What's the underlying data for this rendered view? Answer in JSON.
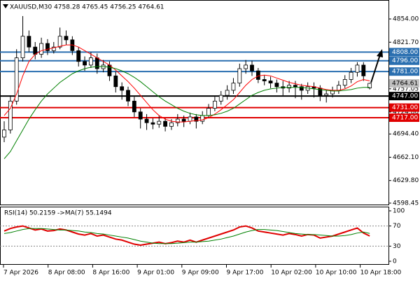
{
  "chart_data": [
    {
      "type": "candlestick",
      "title": "XAUUSD,M30  4758.28 4765.45 4756.25 4764.61",
      "ohlc": [
        [
          4690,
          4712,
          4683,
          4700
        ],
        [
          4700,
          4748,
          4695,
          4740
        ],
        [
          4740,
          4812,
          4735,
          4800
        ],
        [
          4800,
          4858,
          4795,
          4830
        ],
        [
          4830,
          4838,
          4808,
          4815
        ],
        [
          4815,
          4822,
          4798,
          4805
        ],
        [
          4805,
          4828,
          4800,
          4820
        ],
        [
          4820,
          4826,
          4804,
          4810
        ],
        [
          4810,
          4822,
          4806,
          4815
        ],
        [
          4815,
          4842,
          4812,
          4830
        ],
        [
          4830,
          4838,
          4818,
          4825
        ],
        [
          4825,
          4830,
          4804,
          4810
        ],
        [
          4810,
          4815,
          4788,
          4795
        ],
        [
          4795,
          4802,
          4782,
          4790
        ],
        [
          4790,
          4808,
          4786,
          4800
        ],
        [
          4800,
          4806,
          4778,
          4785
        ],
        [
          4785,
          4797,
          4780,
          4790
        ],
        [
          4790,
          4795,
          4768,
          4775
        ],
        [
          4775,
          4781,
          4752,
          4760
        ],
        [
          4760,
          4766,
          4742,
          4755
        ],
        [
          4755,
          4760,
          4733,
          4740
        ],
        [
          4740,
          4746,
          4718,
          4725
        ],
        [
          4725,
          4730,
          4702,
          4715
        ],
        [
          4715,
          4722,
          4700,
          4710
        ],
        [
          4710,
          4716,
          4701,
          4708
        ],
        [
          4708,
          4720,
          4703,
          4712
        ],
        [
          4712,
          4716,
          4698,
          4705
        ],
        [
          4705,
          4715,
          4700,
          4710
        ],
        [
          4710,
          4722,
          4705,
          4715
        ],
        [
          4715,
          4720,
          4704,
          4712
        ],
        [
          4712,
          4724,
          4708,
          4718
        ],
        [
          4718,
          4722,
          4702,
          4712
        ],
        [
          4712,
          4726,
          4708,
          4720
        ],
        [
          4720,
          4736,
          4716,
          4730
        ],
        [
          4730,
          4746,
          4726,
          4740
        ],
        [
          4740,
          4754,
          4735,
          4748
        ],
        [
          4748,
          4762,
          4742,
          4755
        ],
        [
          4755,
          4772,
          4750,
          4765
        ],
        [
          4765,
          4792,
          4760,
          4785
        ],
        [
          4785,
          4797,
          4778,
          4790
        ],
        [
          4790,
          4796,
          4775,
          4782
        ],
        [
          4782,
          4786,
          4765,
          4770
        ],
        [
          4770,
          4776,
          4762,
          4768
        ],
        [
          4768,
          4774,
          4758,
          4765
        ],
        [
          4765,
          4770,
          4752,
          4760
        ],
        [
          4760,
          4768,
          4748,
          4758
        ],
        [
          4758,
          4768,
          4752,
          4762
        ],
        [
          4762,
          4768,
          4744,
          4760
        ],
        [
          4760,
          4764,
          4742,
          4755
        ],
        [
          4755,
          4766,
          4750,
          4760
        ],
        [
          4760,
          4766,
          4745,
          4758
        ],
        [
          4758,
          4762,
          4740,
          4748
        ],
        [
          4748,
          4756,
          4738,
          4750
        ],
        [
          4750,
          4760,
          4745,
          4755
        ],
        [
          4755,
          4768,
          4750,
          4762
        ],
        [
          4762,
          4776,
          4758,
          4770
        ],
        [
          4770,
          4786,
          4765,
          4780
        ],
        [
          4780,
          4794,
          4774,
          4790
        ],
        [
          4790,
          4794,
          4768,
          4775
        ],
        [
          4758.28,
          4765.45,
          4756.25,
          4764.61
        ]
      ],
      "series": [
        {
          "color": "#ff0000",
          "values": [
            4720,
            4730,
            4750,
            4775,
            4795,
            4805,
            4810,
            4812,
            4814,
            4816,
            4818,
            4818,
            4815,
            4810,
            4805,
            4800,
            4795,
            4790,
            4783,
            4775,
            4767,
            4758,
            4748,
            4738,
            4728,
            4720,
            4715,
            4712,
            4711,
            4711,
            4712,
            4713,
            4714,
            4717,
            4722,
            4728,
            4735,
            4742,
            4752,
            4762,
            4770,
            4775,
            4776,
            4775,
            4772,
            4769,
            4766,
            4764,
            4762,
            4761,
            4760,
            4758,
            4756,
            4755,
            4755,
            4757,
            4761,
            4767,
            4770,
            4768
          ]
        },
        {
          "color": "#008000",
          "values": [
            4660,
            4670,
            4685,
            4700,
            4715,
            4728,
            4740,
            4750,
            4758,
            4766,
            4772,
            4778,
            4782,
            4785,
            4787,
            4788,
            4788,
            4787,
            4785,
            4782,
            4778,
            4773,
            4767,
            4760,
            4753,
            4746,
            4740,
            4735,
            4730,
            4726,
            4723,
            4721,
            4720,
            4720,
            4721,
            4723,
            4726,
            4730,
            4736,
            4742,
            4748,
            4752,
            4755,
            4757,
            4758,
            4759,
            4759,
            4759,
            4759,
            4758,
            4757,
            4756,
            4755,
            4754,
            4754,
            4755,
            4756,
            4758,
            4759,
            4759
          ]
        }
      ],
      "ylim": [
        4595.5,
        4876.4
      ],
      "yticks": [
        {
          "value": 4854,
          "label": "4854.00"
        },
        {
          "value": 4821.7,
          "label": "4821.70"
        },
        {
          "value": 4757.05,
          "label": "4757.05"
        },
        {
          "value": 4724.8,
          "label": "4724.80"
        },
        {
          "value": 4694.4,
          "label": "4694.40"
        },
        {
          "value": 4662.1,
          "label": "4662.10"
        },
        {
          "value": 4629.8,
          "label": "4629.80"
        },
        {
          "value": 4598.45,
          "label": "4598.45"
        }
      ],
      "hlines": [
        {
          "value": 4808,
          "label": "4808.00",
          "color": "#2a6fb0"
        },
        {
          "value": 4796,
          "label": "4796.00",
          "color": "#2a6fb0"
        },
        {
          "value": 4781,
          "label": "4781.00",
          "color": "#2a6fb0"
        },
        {
          "value": 4747,
          "label": "4747.00",
          "color": "#000000"
        },
        {
          "value": 4731,
          "label": "4731.00",
          "color": "#e00000"
        },
        {
          "value": 4717,
          "label": "4717.00",
          "color": "#e00000"
        }
      ],
      "last_price": 4764.61,
      "xlabels": [
        "7 Apr 2026",
        "8 Apr 08:00",
        "8 Apr 16:00",
        "9 Apr 01:00",
        "9 Apr 09:00",
        "9 Apr 17:00",
        "10 Apr 02:00",
        "10 Apr 10:00",
        "10 Apr 18:00"
      ]
    },
    {
      "type": "line",
      "title": "RSI(14) 50.2159 ->MA(7) 55.1494",
      "series": [
        {
          "color": "#e00000",
          "values": [
            60,
            65,
            68,
            70,
            66,
            62,
            64,
            60,
            61,
            64,
            62,
            58,
            54,
            52,
            55,
            50,
            52,
            48,
            44,
            42,
            38,
            34,
            32,
            34,
            36,
            38,
            35,
            37,
            40,
            38,
            42,
            38,
            42,
            46,
            50,
            54,
            58,
            62,
            68,
            70,
            66,
            60,
            58,
            56,
            54,
            52,
            55,
            53,
            50,
            53,
            52,
            46,
            48,
            50,
            54,
            58,
            62,
            66,
            56,
            50.2159
          ]
        },
        {
          "color": "#008000",
          "values": [
            55,
            57,
            60,
            63,
            65,
            65,
            65,
            64,
            63,
            62,
            62,
            61,
            60,
            58,
            57,
            55,
            54,
            52,
            50,
            48,
            46,
            43,
            40,
            38,
            36,
            35,
            35,
            35,
            36,
            37,
            38,
            38,
            39,
            40,
            42,
            44,
            47,
            50,
            54,
            58,
            61,
            63,
            63,
            62,
            61,
            59,
            57,
            55,
            54,
            53,
            53,
            52,
            51,
            50,
            50,
            51,
            53,
            56,
            58,
            55.1494
          ]
        }
      ],
      "ylim": [
        0,
        100
      ],
      "yticks": [
        100,
        70,
        30,
        0
      ]
    }
  ]
}
